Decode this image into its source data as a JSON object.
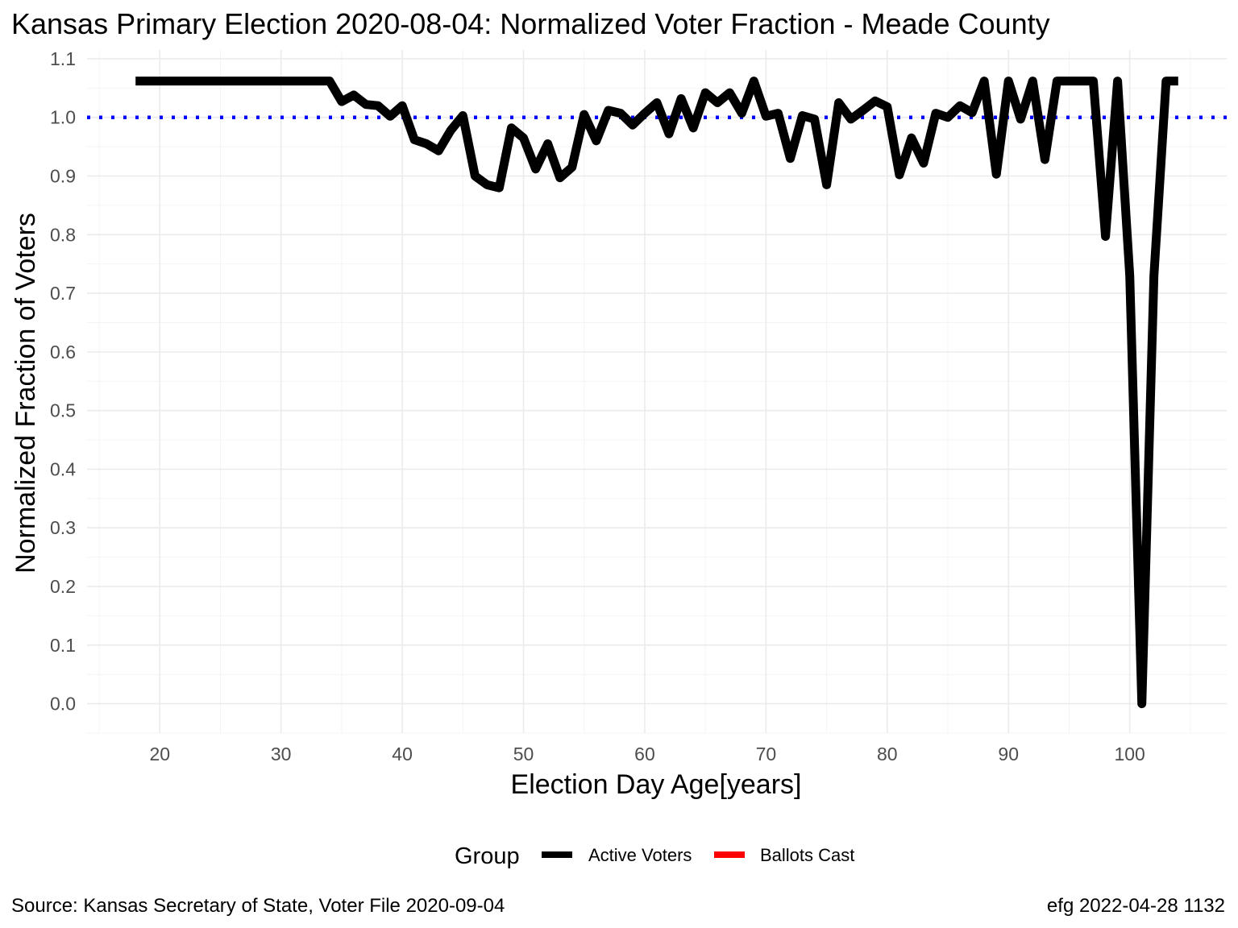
{
  "chart_data": {
    "type": "line",
    "title": "Kansas Primary Election 2020-08-04:  Normalized Voter Fraction - Meade County",
    "xlabel": "Election Day Age[years]",
    "ylabel": "Normalized Fraction of Voters",
    "xlim": [
      14,
      108
    ],
    "ylim": [
      -0.05,
      1.115
    ],
    "xticks": [
      20,
      30,
      40,
      50,
      60,
      70,
      80,
      90,
      100
    ],
    "yticks": [
      0.0,
      0.1,
      0.2,
      0.3,
      0.4,
      0.5,
      0.6,
      0.7,
      0.8,
      0.9,
      1.0,
      1.1
    ],
    "ytick_labels": [
      "0.0",
      "0.1",
      "0.2",
      "0.3",
      "0.4",
      "0.5",
      "0.6",
      "0.7",
      "0.8",
      "0.9",
      "1.0",
      "1.1"
    ],
    "grid": true,
    "legend": {
      "title": "Group",
      "position": "bottom",
      "entries": [
        {
          "name": "Active Voters",
          "color": "#000000"
        },
        {
          "name": "Ballots Cast",
          "color": "#ff0000"
        }
      ]
    },
    "reference_line": {
      "y": 1.0,
      "color": "#0000ff",
      "style": "dotted"
    },
    "series": [
      {
        "name": "Active Voters",
        "color": "#000000",
        "x": [
          18,
          19,
          20,
          21,
          22,
          23,
          24,
          25,
          26,
          27,
          28,
          29,
          30,
          31,
          32,
          33,
          34,
          35,
          36,
          37,
          38,
          39,
          40,
          41,
          42,
          43,
          44,
          45,
          46,
          47,
          48,
          49,
          50,
          51,
          52,
          53,
          54,
          55,
          56,
          57,
          58,
          59,
          60,
          61,
          62,
          63,
          64,
          65,
          66,
          67,
          68,
          69,
          70,
          71,
          72,
          73,
          74,
          75,
          76,
          77,
          78,
          79,
          80,
          81,
          82,
          83,
          84,
          85,
          86,
          87,
          88,
          89,
          90,
          91,
          92,
          93,
          94,
          95,
          96,
          97,
          98,
          99,
          100,
          101,
          102,
          103,
          104
        ],
        "y": [
          1.062,
          1.062,
          1.062,
          1.062,
          1.062,
          1.062,
          1.062,
          1.062,
          1.062,
          1.062,
          1.062,
          1.062,
          1.062,
          1.062,
          1.062,
          1.062,
          1.062,
          1.027,
          1.038,
          1.022,
          1.02,
          1.002,
          1.02,
          0.962,
          0.955,
          0.943,
          0.978,
          1.003,
          0.9,
          0.885,
          0.88,
          0.982,
          0.965,
          0.912,
          0.955,
          0.897,
          0.915,
          1.005,
          0.96,
          1.012,
          1.007,
          0.987,
          1.007,
          1.025,
          0.972,
          1.032,
          0.982,
          1.042,
          1.025,
          1.042,
          1.007,
          1.062,
          1.002,
          1.007,
          0.93,
          1.003,
          0.997,
          0.885,
          1.025,
          0.997,
          1.012,
          1.028,
          1.018,
          0.902,
          0.965,
          0.922,
          1.007,
          1.0,
          1.02,
          1.008,
          1.062,
          0.903,
          1.062,
          0.997,
          1.062,
          0.928,
          1.062,
          1.062,
          1.062,
          1.062,
          0.797,
          1.062,
          0.73,
          0.0,
          0.73,
          1.062,
          1.062
        ]
      }
    ]
  },
  "caption": {
    "source": "Source:  Kansas Secretary of State, Voter File  2020-09-04",
    "credit": "efg 2022-04-28 1132"
  }
}
